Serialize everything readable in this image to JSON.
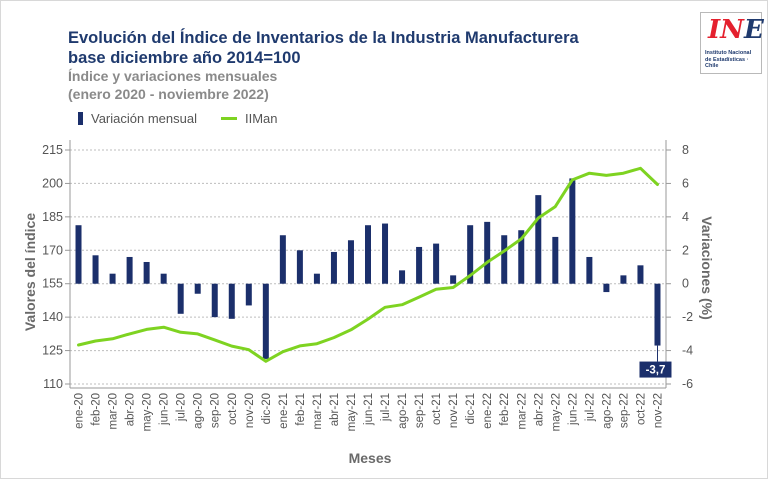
{
  "header": {
    "title_line1": "Evolución del Índice de Inventarios de la Industria Manufacturera",
    "title_line2": "base diciembre año 2014=100",
    "subtitle_line1": "Índice y variaciones mensuales",
    "subtitle_line2": "(enero 2020 - noviembre 2022)"
  },
  "logo": {
    "mark_left": "I",
    "mark_n": "N",
    "mark_e": "E",
    "text": "Instituto Nacional de Estadísticas · Chile"
  },
  "colors": {
    "bar": "#1b2f6b",
    "line": "#7ed321",
    "annotation_bg": "#1b2f6b",
    "title": "#1f3a6e"
  },
  "chart_data": {
    "type": "bar+line",
    "title": "Evolución del Índice de Inventarios de la Industria Manufacturera base diciembre año 2014=100",
    "subtitle": "Índice y variaciones mensuales (enero 2020 - noviembre 2022)",
    "xlabel": "Meses",
    "ylabel_left": "Valores del índice",
    "ylabel_right": "Variaciones (%)",
    "ylim_left": [
      110,
      215
    ],
    "yticks_left": [
      "110",
      "125",
      "140",
      "155",
      "170",
      "185",
      "200",
      "215"
    ],
    "ylim_right": [
      -6,
      8
    ],
    "yticks_right": [
      "-6",
      "-4",
      "-2",
      "0",
      "2",
      "4",
      "6",
      "8"
    ],
    "grid": true,
    "legend_position": "top-left",
    "categories": [
      "ene-20",
      "feb-20",
      "mar-20",
      "abr-20",
      "may-20",
      "jun-20",
      "jul-20",
      "ago-20",
      "sep-20",
      "oct-20",
      "nov-20",
      "dic-20",
      "ene-21",
      "feb-21",
      "mar-21",
      "abr-21",
      "may-21",
      "jun-21",
      "jul-21",
      "ago-21",
      "sep-21",
      "oct-21",
      "nov-21",
      "dic-21",
      "ene-22",
      "feb-22",
      "mar-22",
      "abr-22",
      "may-22",
      "jun-22",
      "jul-22",
      "ago-22",
      "sep-22",
      "oct-22",
      "nov-22"
    ],
    "series": [
      {
        "name": "Variación mensual",
        "type": "bar",
        "axis": "right",
        "values": [
          3.5,
          1.7,
          0.6,
          1.6,
          1.3,
          0.6,
          -1.8,
          -0.6,
          -2.0,
          -2.1,
          -1.3,
          -4.5,
          2.9,
          2.0,
          0.6,
          1.9,
          2.6,
          3.5,
          3.6,
          0.8,
          2.2,
          2.4,
          0.5,
          3.5,
          3.7,
          2.9,
          3.2,
          5.3,
          2.8,
          6.3,
          1.6,
          -0.5,
          0.5,
          1.1,
          -3.7
        ]
      },
      {
        "name": "IIMan",
        "type": "line",
        "axis": "left",
        "values": [
          127.5,
          129.3,
          130.3,
          132.5,
          134.5,
          135.5,
          133.2,
          132.5,
          129.8,
          127.0,
          125.4,
          120.2,
          124.5,
          127.1,
          128.1,
          130.8,
          134.3,
          139.1,
          144.4,
          145.6,
          149.0,
          152.5,
          153.3,
          158.7,
          164.6,
          169.7,
          175.1,
          184.5,
          189.6,
          201.6,
          204.6,
          203.6,
          204.6,
          206.8,
          199.5
        ]
      }
    ],
    "annotations": [
      {
        "category": "nov-22",
        "label": "-3,7"
      }
    ]
  }
}
